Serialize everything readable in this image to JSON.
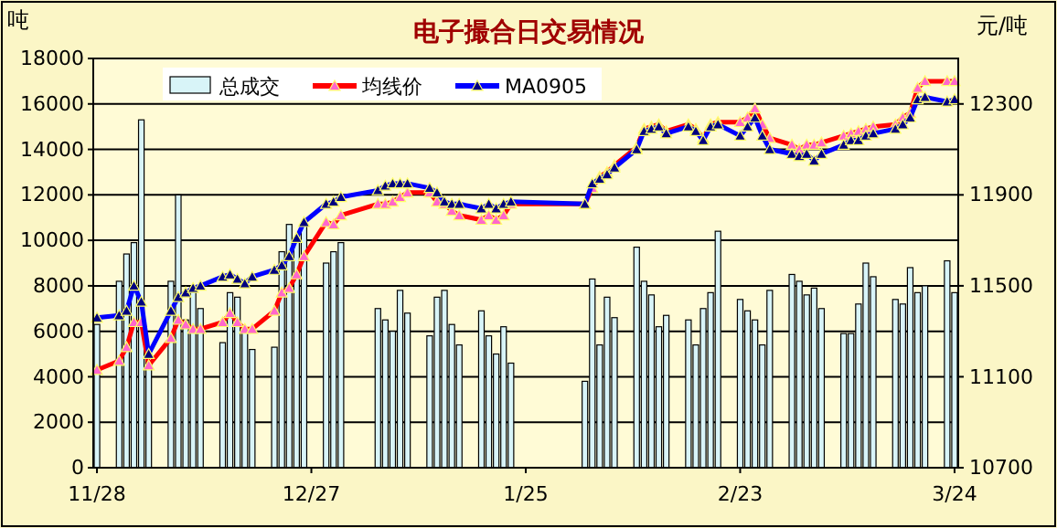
{
  "chart_data": {
    "type": "bar",
    "title": "电子撮合日交易情况",
    "ylabel": "吨",
    "y2label": "元/吨",
    "categories": [
      "11/28",
      null,
      null,
      null,
      null,
      null,
      null,
      null,
      null,
      null,
      null,
      null,
      null,
      null,
      null,
      null,
      null,
      null,
      null,
      null,
      null,
      null,
      null,
      null,
      null,
      null,
      null,
      null,
      null,
      "12/27",
      null,
      null,
      null,
      null,
      null,
      null,
      null,
      null,
      null,
      null,
      null,
      null,
      null,
      null,
      null,
      null,
      null,
      null,
      null,
      null,
      null,
      null,
      null,
      null,
      null,
      null,
      null,
      null,
      "1/25",
      null,
      null,
      null,
      null,
      null,
      null,
      null,
      null,
      null,
      null,
      null,
      null,
      null,
      null,
      null,
      null,
      null,
      null,
      null,
      null,
      null,
      null,
      null,
      null,
      null,
      null,
      null,
      null,
      "2/23",
      null,
      null,
      null,
      null,
      null,
      null,
      null,
      null,
      null,
      null,
      null,
      null,
      null,
      null,
      null,
      null,
      null,
      null,
      null,
      null,
      null,
      null,
      null,
      null,
      null,
      null,
      null,
      null,
      "3/24"
    ],
    "series": [
      {
        "name": "总成交",
        "color": "#d8f4f8",
        "values": [
          6300,
          null,
          null,
          8200,
          9400,
          9900,
          15300,
          5000,
          null,
          null,
          8200,
          12000,
          6500,
          8000,
          7000,
          null,
          null,
          5500,
          7700,
          7500,
          6000,
          5200,
          null,
          null,
          5300,
          9500,
          10700,
          10000,
          10700,
          null,
          null,
          9000,
          9500,
          9900,
          null,
          null,
          null,
          null,
          7000,
          6500,
          6000,
          7800,
          6800,
          null,
          null,
          5800,
          7500,
          7800,
          6300,
          5400,
          null,
          null,
          6900,
          5800,
          5000,
          6200,
          4600,
          null,
          null,
          null,
          null,
          null,
          null,
          null,
          null,
          null,
          3800,
          8300,
          5400,
          7500,
          6600,
          null,
          null,
          9700,
          8200,
          7600,
          6200,
          6700,
          null,
          null,
          6500,
          5400,
          7000,
          7700,
          10400,
          null,
          null,
          7400,
          6900,
          6500,
          5400,
          7800,
          null,
          null,
          8500,
          8200,
          7600,
          7900,
          7000,
          null,
          null,
          5900,
          5900,
          7200,
          9000,
          8400,
          null,
          null,
          7400,
          7200,
          8800,
          7700,
          8000,
          null,
          null,
          9100,
          7700
        ]
      },
      {
        "name": "均线价",
        "type": "line",
        "axis": "y2",
        "color": "#ff0000",
        "values": [
          11130,
          null,
          null,
          11170,
          11230,
          11340,
          11340,
          11150,
          null,
          null,
          11270,
          11350,
          11330,
          11310,
          11310,
          null,
          null,
          11340,
          11380,
          11340,
          11310,
          11310,
          null,
          null,
          11390,
          11470,
          11490,
          11550,
          11630,
          null,
          null,
          11780,
          11770,
          11810,
          null,
          null,
          null,
          null,
          11860,
          11860,
          11870,
          11890,
          11910,
          null,
          null,
          11910,
          11870,
          11860,
          11830,
          11810,
          null,
          null,
          11790,
          11810,
          11790,
          11810,
          11860,
          null,
          null,
          null,
          null,
          null,
          null,
          null,
          null,
          null,
          11860,
          11930,
          11980,
          12000,
          12030,
          null,
          null,
          12110,
          12190,
          12200,
          12210,
          12180,
          null,
          null,
          12210,
          12190,
          12150,
          12210,
          12220,
          null,
          null,
          12220,
          12240,
          12280,
          12210,
          12150,
          null,
          null,
          12120,
          12100,
          12120,
          12120,
          12130,
          null,
          null,
          12160,
          12170,
          12180,
          12190,
          12200,
          null,
          null,
          12210,
          12240,
          12260,
          12370,
          12400,
          null,
          null,
          12400,
          12400
        ]
      },
      {
        "name": "MA0905",
        "type": "line",
        "axis": "y2",
        "color": "#0000ff",
        "values": [
          11360,
          null,
          null,
          11370,
          11390,
          11500,
          11430,
          11200,
          null,
          null,
          11390,
          11450,
          11470,
          11490,
          11500,
          null,
          null,
          11540,
          11550,
          11530,
          11510,
          11540,
          null,
          null,
          11570,
          11590,
          11630,
          11710,
          11780,
          null,
          null,
          11860,
          11870,
          11890,
          null,
          null,
          null,
          null,
          11920,
          11940,
          11950,
          11950,
          11950,
          null,
          null,
          11930,
          11910,
          11870,
          11860,
          11860,
          null,
          null,
          11840,
          11860,
          11840,
          11860,
          11870,
          null,
          null,
          null,
          null,
          null,
          null,
          null,
          null,
          null,
          11860,
          11950,
          11970,
          11990,
          12020,
          null,
          null,
          12100,
          12180,
          12190,
          12200,
          12170,
          null,
          null,
          12200,
          12180,
          12140,
          12200,
          12210,
          null,
          null,
          12160,
          12200,
          12240,
          12160,
          12100,
          null,
          null,
          12080,
          12070,
          12080,
          12050,
          12080,
          null,
          null,
          12120,
          12140,
          12140,
          12160,
          12170,
          null,
          null,
          12190,
          12210,
          12240,
          12320,
          12330,
          null,
          null,
          12310,
          12320
        ]
      }
    ],
    "ylim": [
      0,
      18000
    ],
    "yticks": [
      0,
      2000,
      4000,
      6000,
      8000,
      10000,
      12000,
      14000,
      16000,
      18000
    ],
    "y2lim": [
      10700,
      12500
    ],
    "y2ticks": [
      10700,
      11100,
      11500,
      11900,
      12300
    ],
    "grid": "y",
    "legend": "top left",
    "marker": "triangle"
  }
}
